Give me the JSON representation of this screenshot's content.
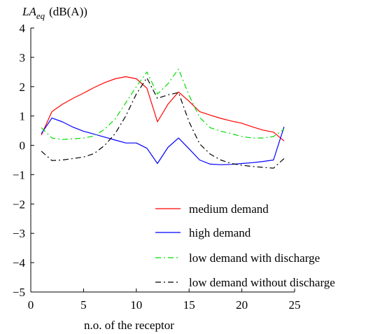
{
  "chart_data": {
    "type": "line",
    "ylabel_main": "LA",
    "ylabel_sub": "eq",
    "ylabel_unit": "(dB(A))",
    "xlabel": "n.o. of the receptor",
    "xlim": [
      0,
      25
    ],
    "ylim": [
      -5,
      4
    ],
    "x_ticks": [
      0,
      5,
      10,
      15,
      20,
      25
    ],
    "y_ticks": [
      -5,
      -4,
      -3,
      -2,
      -1,
      0,
      1,
      2,
      3,
      4
    ],
    "x_tick_labels": [
      "0",
      "5",
      "10",
      "15",
      "20",
      "25"
    ],
    "y_tick_labels": [
      "−5",
      "−4",
      "−3",
      "−2",
      "−1",
      "0",
      "1",
      "2",
      "3",
      "4"
    ],
    "legend_position": "bottom-right",
    "series": [
      {
        "name": "medium demand",
        "color": "#ff0000",
        "dash": "solid",
        "x": [
          1,
          2,
          3,
          4,
          5,
          6,
          7,
          8,
          9,
          10,
          11,
          12,
          13,
          14,
          15,
          16,
          17,
          18,
          19,
          20,
          21,
          22,
          23,
          24
        ],
        "y": [
          0.35,
          1.15,
          1.4,
          1.6,
          1.78,
          1.97,
          2.14,
          2.27,
          2.34,
          2.27,
          1.95,
          0.8,
          1.4,
          1.82,
          1.5,
          1.15,
          1.03,
          0.92,
          0.83,
          0.75,
          0.63,
          0.52,
          0.45,
          0.15
        ]
      },
      {
        "name": "high demand",
        "color": "#0000ff",
        "dash": "solid",
        "x": [
          1,
          2,
          3,
          4,
          5,
          6,
          7,
          8,
          9,
          10,
          11,
          12,
          13,
          14,
          15,
          16,
          17,
          18,
          19,
          20,
          21,
          22,
          23,
          24
        ],
        "y": [
          0.4,
          0.93,
          0.8,
          0.62,
          0.48,
          0.38,
          0.28,
          0.18,
          0.08,
          0.08,
          -0.1,
          -0.62,
          -0.07,
          0.25,
          -0.12,
          -0.5,
          -0.64,
          -0.66,
          -0.65,
          -0.62,
          -0.59,
          -0.55,
          -0.5,
          0.63
        ]
      },
      {
        "name": "low demand with discharge",
        "color": "#00dd00",
        "dash": "dashdot",
        "x": [
          1,
          2,
          3,
          4,
          5,
          6,
          7,
          8,
          9,
          10,
          11,
          12,
          13,
          14,
          15,
          16,
          17,
          18,
          19,
          20,
          21,
          22,
          23,
          24
        ],
        "y": [
          0.6,
          0.25,
          0.2,
          0.22,
          0.25,
          0.32,
          0.55,
          0.9,
          1.45,
          2.0,
          2.5,
          1.75,
          2.1,
          2.6,
          1.7,
          0.95,
          0.6,
          0.48,
          0.4,
          0.3,
          0.25,
          0.25,
          0.3,
          0.55
        ]
      },
      {
        "name": "low demand without discharge",
        "color": "#000000",
        "dash": "dashdot",
        "x": [
          1,
          2,
          3,
          4,
          5,
          6,
          7,
          8,
          9,
          10,
          11,
          12,
          13,
          14,
          15,
          16,
          17,
          18,
          19,
          20,
          21,
          22,
          23,
          24
        ],
        "y": [
          -0.2,
          -0.52,
          -0.5,
          -0.45,
          -0.4,
          -0.28,
          0.0,
          0.4,
          1.0,
          1.75,
          2.3,
          1.6,
          1.72,
          1.8,
          0.8,
          0.05,
          -0.3,
          -0.5,
          -0.62,
          -0.68,
          -0.72,
          -0.75,
          -0.78,
          -0.45
        ]
      }
    ]
  }
}
